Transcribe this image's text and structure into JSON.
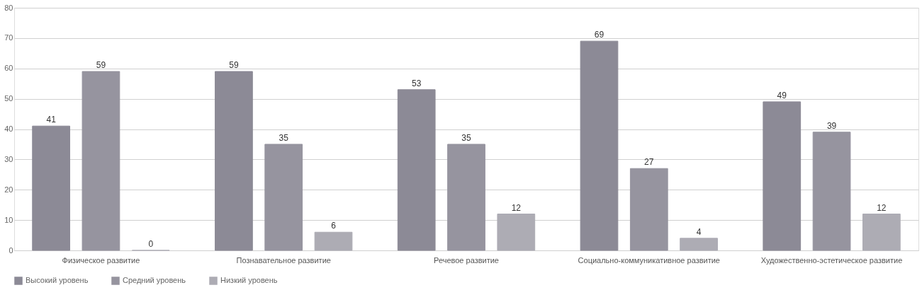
{
  "chart_data": {
    "type": "bar",
    "categories": [
      "Физическое развитие",
      "Познавательное развитие",
      "Речевое развитие",
      "Социально-коммуникативное развитие",
      "Художественно-эстетическое развитие"
    ],
    "series": [
      {
        "name": "Высокий уровень",
        "color": "#8c8a96",
        "values": [
          41,
          59,
          53,
          69,
          49
        ]
      },
      {
        "name": "Средний уровень",
        "color": "#96949f",
        "values": [
          59,
          35,
          35,
          27,
          39
        ]
      },
      {
        "name": "Низкий уровень",
        "color": "#adacb4",
        "values": [
          0,
          6,
          12,
          4,
          12
        ]
      }
    ],
    "ylim": [
      0,
      80
    ],
    "yticks": [
      0,
      10,
      20,
      30,
      40,
      50,
      60,
      70,
      80
    ],
    "grid": "y",
    "legend": "bottom",
    "data_labels": true
  }
}
